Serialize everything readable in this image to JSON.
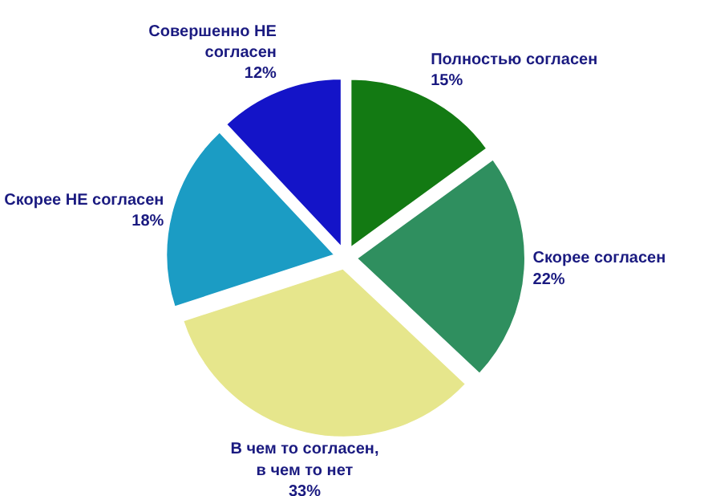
{
  "chart_data": {
    "type": "pie",
    "categories": [
      "Полностью согласен",
      "Скорее согласен",
      "В чем то согласен, в чем то нет",
      "Скорее НЕ согласен",
      "Совершенно НЕ согласен"
    ],
    "values": [
      15,
      22,
      33,
      18,
      12
    ],
    "colors": [
      "#137a13",
      "#2f8f5f",
      "#e6e68c",
      "#1b9cc4",
      "#1414c8"
    ],
    "value_labels": [
      "15%",
      "22%",
      "33%",
      "18%",
      "12%"
    ]
  }
}
